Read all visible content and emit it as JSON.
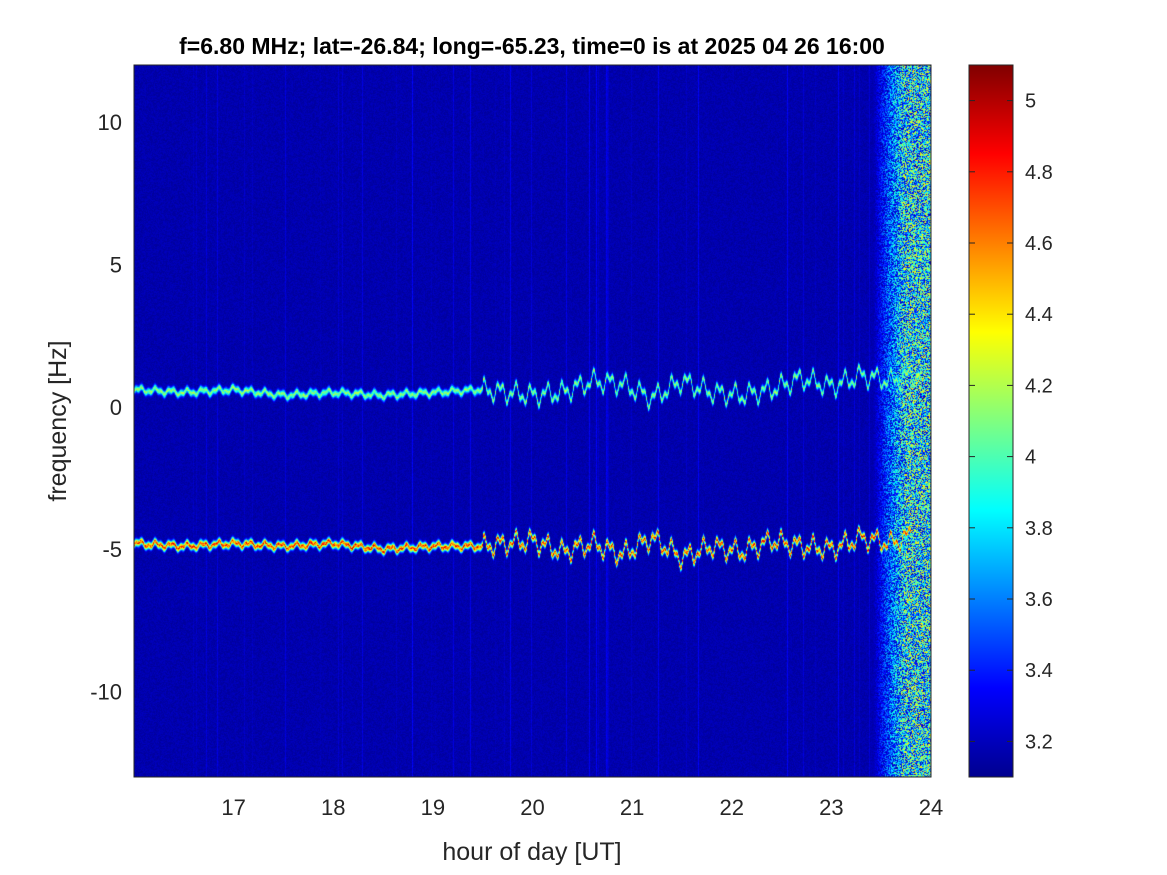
{
  "chart_data": {
    "type": "heatmap",
    "title": "f=6.80 MHz;  lat=-26.84; long=-65.23, time=0 is at 2025 04 26 16:00",
    "xlabel": "hour of day [UT]",
    "ylabel": "frequency [Hz]",
    "xlim": [
      16,
      24
    ],
    "ylim": [
      -13,
      12
    ],
    "x_ticks": [
      "17",
      "18",
      "19",
      "20",
      "21",
      "22",
      "23",
      "24"
    ],
    "y_ticks": [
      "10",
      "5",
      "0",
      "-5",
      "-10"
    ],
    "colorbar": {
      "colormap": "jet",
      "clim": [
        3.1,
        5.1
      ],
      "ticks": [
        "5",
        "4.8",
        "4.6",
        "4.4",
        "4.2",
        "4",
        "3.8",
        "3.6",
        "3.4",
        "3.2"
      ]
    },
    "traces": [
      {
        "x": [
          16.0,
          16.5,
          17.0,
          17.5,
          18.0,
          18.5,
          19.0,
          19.5,
          20.0,
          20.3,
          20.6,
          20.9,
          21.2,
          21.5,
          21.8,
          22.1,
          22.4,
          22.7,
          23.0,
          23.3,
          23.6,
          23.9
        ],
        "y": [
          0.6,
          0.5,
          0.6,
          0.4,
          0.5,
          0.4,
          0.5,
          0.6,
          0.4,
          0.5,
          0.9,
          0.8,
          0.3,
          0.9,
          0.5,
          0.4,
          0.6,
          1.0,
          0.7,
          1.1,
          0.9,
          1.2
        ],
        "peak": 4.3
      },
      {
        "x": [
          16.0,
          16.5,
          17.0,
          17.5,
          18.0,
          18.5,
          19.0,
          19.5,
          20.0,
          20.3,
          20.6,
          20.9,
          21.2,
          21.5,
          21.8,
          22.1,
          22.4,
          22.7,
          23.0,
          23.3,
          23.6,
          23.8
        ],
        "y": [
          -4.8,
          -4.9,
          -4.8,
          -4.9,
          -4.8,
          -5.0,
          -4.9,
          -4.9,
          -4.7,
          -5.1,
          -4.8,
          -5.2,
          -4.6,
          -5.3,
          -4.9,
          -5.1,
          -4.7,
          -4.9,
          -5.0,
          -4.6,
          -4.8,
          -4.5
        ],
        "peak": 5.0
      }
    ],
    "background_level": 3.15,
    "noise_band_start_hour": 23.4
  }
}
